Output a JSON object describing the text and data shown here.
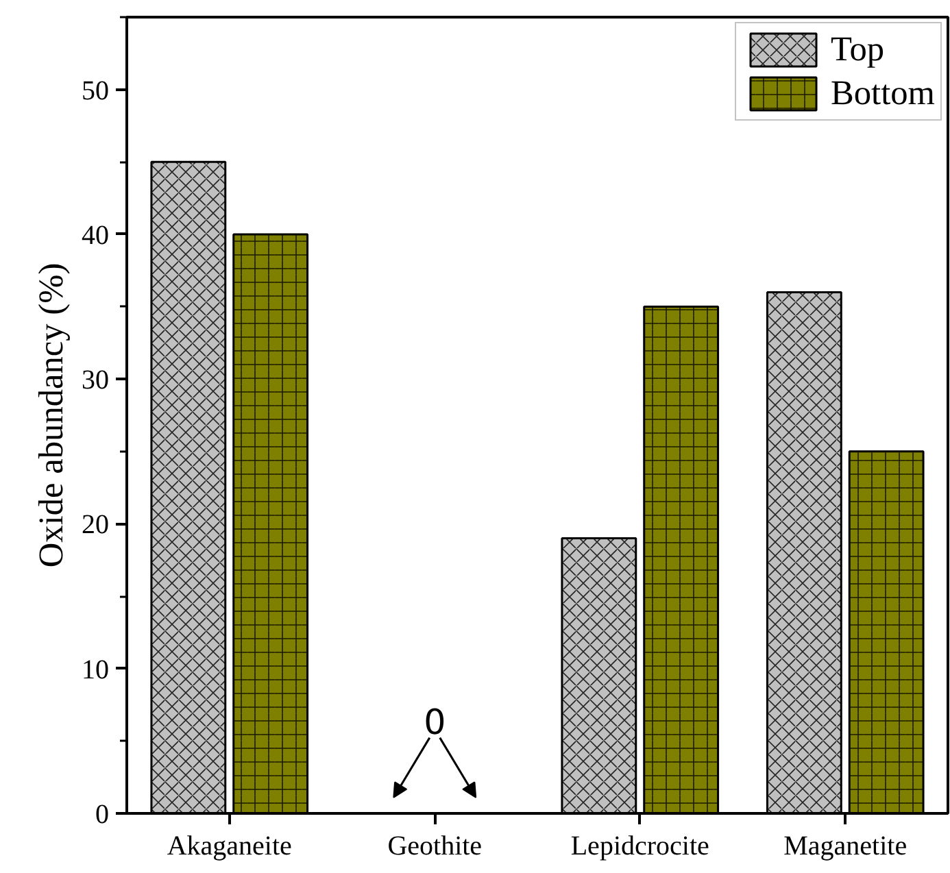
{
  "chart_data": {
    "type": "bar",
    "ylabel": "Oxide abundancy (%)",
    "categories": [
      "Akaganeite",
      "Geothite",
      "Lepidcrocite",
      "Maganetite"
    ],
    "series": [
      {
        "name": "Top",
        "color": "#c0c0c0",
        "values": [
          45,
          0,
          19,
          36
        ]
      },
      {
        "name": "Bottom",
        "color": "#808000",
        "values": [
          40,
          0,
          35,
          25
        ]
      }
    ],
    "ylim": [
      0,
      55
    ],
    "yticks": [
      0,
      10,
      20,
      30,
      40,
      50
    ],
    "grid": false,
    "legend": "top right",
    "annotations": [
      {
        "text": "0",
        "x": "Geothite",
        "y": 0
      }
    ]
  }
}
